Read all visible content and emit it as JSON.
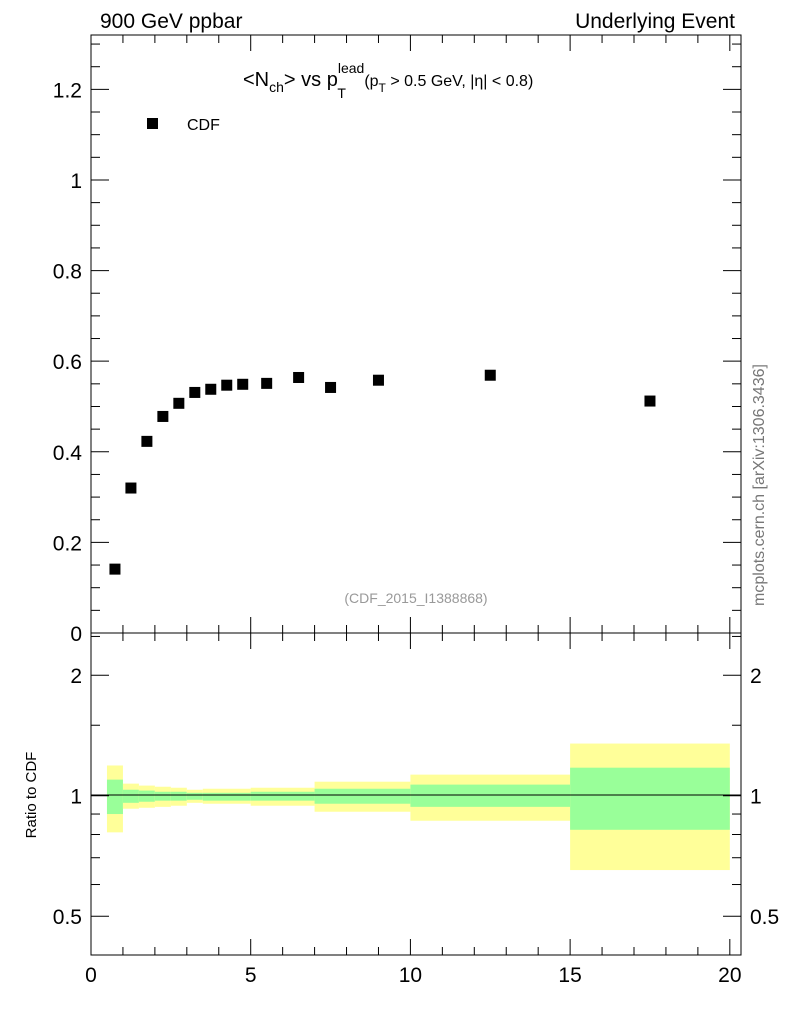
{
  "header": {
    "left": "900 GeV ppbar",
    "right": "Underlying Event"
  },
  "side_label": "mcplots.cern.ch [arXiv:1306.3436]",
  "watermark": "(CDF_2015_I1388868)",
  "colors": {
    "marker": "#000000",
    "yellow": "#ffff99",
    "green": "#99ff99",
    "watermark": "#999999"
  },
  "chart_data": [
    {
      "type": "scatter",
      "title_parts": {
        "a": "<N",
        "a_sub": "ch",
        "b": "> vs p",
        "b_sup": "lead",
        "b_sub": "T",
        "c": " (p",
        "c_sub": "T",
        "d": " > 0.5 GeV, |η| < 0.8)"
      },
      "legend": [
        {
          "label": "CDF",
          "marker": "square",
          "placement": "top-left"
        }
      ],
      "xlim": [
        0,
        20.35
      ],
      "ylim": [
        0,
        1.32
      ],
      "yticks": [
        "0",
        "0.2",
        "0.4",
        "0.6",
        "0.8",
        "1",
        "1.2"
      ],
      "series": [
        {
          "name": "CDF",
          "x": [
            0.75,
            1.25,
            1.75,
            2.25,
            2.75,
            3.25,
            3.75,
            4.25,
            4.75,
            5.5,
            6.5,
            7.5,
            9,
            12.5,
            17.5
          ],
          "y": [
            0.141,
            0.32,
            0.423,
            0.478,
            0.507,
            0.531,
            0.538,
            0.547,
            0.549,
            0.551,
            0.564,
            0.542,
            0.558,
            0.569,
            0.512
          ]
        }
      ]
    },
    {
      "type": "area",
      "ylabel": "Ratio to CDF",
      "yscale": "log",
      "ylim": [
        0.4,
        2.55
      ],
      "xlim": [
        0,
        20.35
      ],
      "yticks": [
        "0.5",
        "1",
        "2"
      ],
      "xticks": [
        "0",
        "5",
        "10",
        "15",
        "20"
      ],
      "bins": [
        {
          "lo": 0.5,
          "hi": 1,
          "y_up": 1.19,
          "y_dn": 0.81,
          "g_up": 1.097,
          "g_dn": 0.9
        },
        {
          "lo": 1,
          "hi": 1.5,
          "y_up": 1.072,
          "y_dn": 0.928,
          "g_up": 1.035,
          "g_dn": 0.96
        },
        {
          "lo": 1.5,
          "hi": 2,
          "y_up": 1.06,
          "y_dn": 0.933,
          "g_up": 1.03,
          "g_dn": 0.966
        },
        {
          "lo": 2,
          "hi": 2.5,
          "y_up": 1.053,
          "y_dn": 0.938,
          "g_up": 1.023,
          "g_dn": 0.972
        },
        {
          "lo": 2.5,
          "hi": 3,
          "y_up": 1.047,
          "y_dn": 0.944,
          "g_up": 1.023,
          "g_dn": 0.972
        },
        {
          "lo": 3,
          "hi": 3.5,
          "y_up": 1.035,
          "y_dn": 0.96,
          "g_up": 1.017,
          "g_dn": 0.977
        },
        {
          "lo": 3.5,
          "hi": 5,
          "y_up": 1.041,
          "y_dn": 0.955,
          "g_up": 1.017,
          "g_dn": 0.972
        },
        {
          "lo": 5,
          "hi": 7,
          "y_up": 1.047,
          "y_dn": 0.944,
          "g_up": 1.023,
          "g_dn": 0.972
        },
        {
          "lo": 7,
          "hi": 10,
          "y_up": 1.084,
          "y_dn": 0.912,
          "g_up": 1.041,
          "g_dn": 0.955
        },
        {
          "lo": 10,
          "hi": 15,
          "y_up": 1.129,
          "y_dn": 0.866,
          "g_up": 1.066,
          "g_dn": 0.938
        },
        {
          "lo": 15,
          "hi": 20,
          "y_up": 1.35,
          "y_dn": 0.652,
          "g_up": 1.175,
          "g_dn": 0.822
        }
      ]
    }
  ]
}
